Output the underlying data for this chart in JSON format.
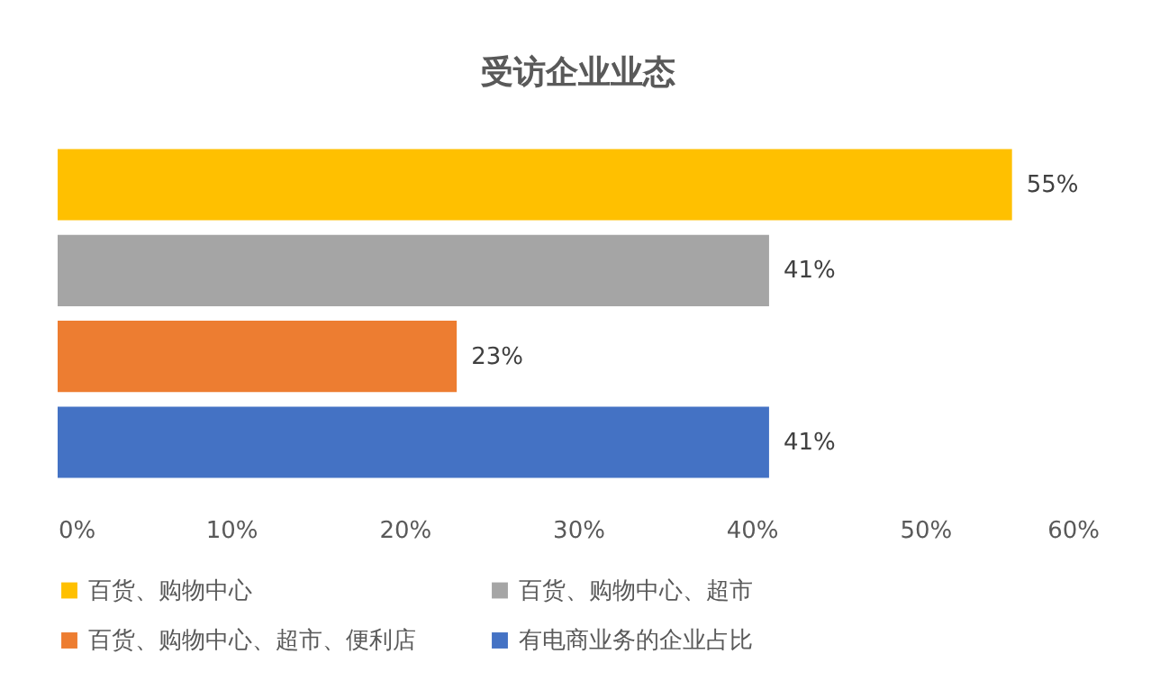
{
  "chart_data": {
    "type": "bar",
    "orientation": "horizontal",
    "stacked": true,
    "title": "受访企业业态",
    "categories": [
      null,
      null,
      null,
      null
    ],
    "series": [
      {
        "name": "百货、购物中心",
        "color": "#ffc000",
        "values": [
          55,
          0,
          0,
          0
        ],
        "value_labels": [
          "55%",
          null,
          null,
          null
        ]
      },
      {
        "name": "百货、购物中心、超市",
        "color": "#a5a5a5",
        "values": [
          0,
          41,
          0,
          0
        ],
        "value_labels": [
          null,
          "41%",
          null,
          null
        ]
      },
      {
        "name": "百货、购物中心、超市、便利店",
        "color": "#ed7d31",
        "values": [
          0,
          0,
          23,
          0
        ],
        "value_labels": [
          null,
          null,
          "23%",
          null
        ]
      },
      {
        "name": "有电商业务的企业占比",
        "color": "#4472c4",
        "values": [
          0,
          0,
          0,
          41
        ],
        "value_labels": [
          null,
          null,
          null,
          "41%"
        ]
      }
    ],
    "xlim": [
      0,
      60
    ],
    "xticks": [
      {
        "value": 0,
        "label": "0%"
      },
      {
        "value": 10,
        "label": "10%"
      },
      {
        "value": 20,
        "label": "20%"
      },
      {
        "value": 30,
        "label": "30%"
      },
      {
        "value": 40,
        "label": "40%"
      },
      {
        "value": 50,
        "label": "50%"
      },
      {
        "value": 60,
        "label": "60%"
      }
    ],
    "tick_labels": "x",
    "legend": "bottom"
  }
}
